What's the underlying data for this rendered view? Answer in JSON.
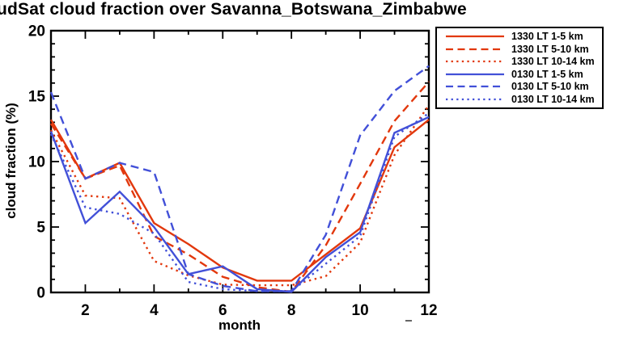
{
  "chart": {
    "title": "udSat cloud fraction over Savanna_Botswana_Zimbabwe",
    "xlabel": "month",
    "ylabel": "cloud fraction (%)"
  },
  "chart_data": {
    "type": "line",
    "title": "udSat cloud fraction over Savanna_Botswana_Zimbabwe",
    "xlabel": "month",
    "ylabel": "cloud fraction (%)",
    "x": [
      1,
      2,
      3,
      4,
      5,
      6,
      7,
      8,
      9,
      10,
      11,
      12
    ],
    "xlim": [
      1,
      12
    ],
    "ylim": [
      0,
      20
    ],
    "xticks_labeled": [
      2,
      4,
      6,
      8,
      10,
      12
    ],
    "yticks_labeled": [
      0,
      5,
      10,
      15,
      20
    ],
    "minor_x_step": 1,
    "minor_y_step": 1,
    "grid": false,
    "legend_position": "outside-top-right",
    "colors": {
      "day_1330": "#e2380d",
      "night_0130": "#4250d8",
      "axis": "#000000"
    },
    "series": [
      {
        "name": "1330 LT 1-5 km",
        "color": "#e2380d",
        "line_style": "solid",
        "values": [
          13.2,
          8.7,
          9.9,
          5.3,
          3.7,
          1.9,
          0.9,
          0.9,
          2.9,
          4.9,
          11.1,
          13.2
        ]
      },
      {
        "name": "1330 LT 5-10 km",
        "color": "#e2380d",
        "line_style": "dashed",
        "values": [
          12.9,
          8.7,
          9.7,
          4.3,
          2.9,
          1.2,
          0.4,
          0.05,
          3.6,
          8.3,
          13.1,
          16.1
        ]
      },
      {
        "name": "1330 LT 10-14 km",
        "color": "#e2380d",
        "line_style": "dotted",
        "values": [
          12.4,
          7.4,
          7.2,
          2.4,
          1.3,
          0.6,
          0.55,
          0.55,
          1.25,
          3.8,
          10.5,
          14.3
        ]
      },
      {
        "name": "0130 LT 1-5 km",
        "color": "#4250d8",
        "line_style": "solid",
        "values": [
          12.3,
          5.3,
          7.7,
          5.0,
          1.4,
          2.0,
          0.25,
          0.05,
          2.7,
          4.6,
          12.2,
          13.4
        ]
      },
      {
        "name": "0130 LT 5-10 km",
        "color": "#4250d8",
        "line_style": "dashed",
        "values": [
          15.3,
          8.7,
          9.9,
          9.2,
          1.4,
          0.5,
          0.1,
          0.1,
          4.4,
          12.0,
          15.4,
          17.3
        ]
      },
      {
        "name": "0130 LT 10-14 km",
        "color": "#4250d8",
        "line_style": "dotted",
        "values": [
          12.1,
          6.5,
          6.0,
          4.5,
          0.8,
          0.25,
          0.1,
          0.1,
          2.2,
          4.3,
          11.9,
          13.7
        ]
      }
    ]
  }
}
